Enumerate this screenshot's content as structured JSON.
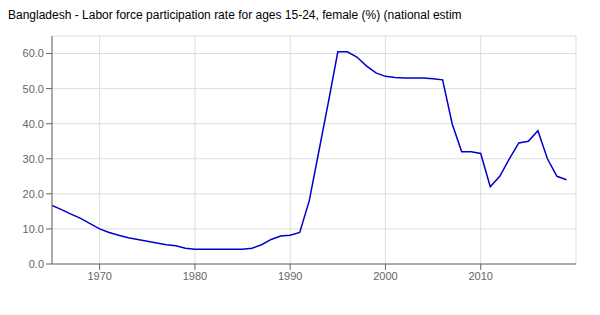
{
  "chart_data": {
    "type": "line",
    "title": "Bangladesh - Labor force participation rate for ages 15-24, female (%) (national estim",
    "x": [
      1965,
      1966,
      1967,
      1968,
      1969,
      1970,
      1971,
      1972,
      1973,
      1974,
      1975,
      1976,
      1977,
      1978,
      1979,
      1980,
      1981,
      1982,
      1983,
      1984,
      1985,
      1986,
      1987,
      1988,
      1989,
      1990,
      1991,
      1992,
      1993,
      1994,
      1995,
      1996,
      1997,
      1998,
      1999,
      2000,
      2001,
      2002,
      2003,
      2004,
      2005,
      2006,
      2007,
      2008,
      2009,
      2010,
      2011,
      2012,
      2013,
      2014,
      2015,
      2016,
      2017,
      2018,
      2019
    ],
    "values": [
      16.7,
      15.5,
      14.2,
      13.0,
      11.5,
      10.0,
      9.0,
      8.2,
      7.5,
      7.0,
      6.5,
      6.0,
      5.5,
      5.2,
      4.5,
      4.2,
      4.2,
      4.2,
      4.2,
      4.2,
      4.2,
      4.5,
      5.5,
      7.0,
      8.0,
      8.2,
      9.0,
      18.0,
      32.0,
      46.0,
      60.5,
      60.5,
      59.0,
      56.5,
      54.5,
      53.5,
      53.2,
      53.0,
      53.0,
      53.0,
      52.8,
      52.5,
      40.0,
      32.0,
      32.0,
      31.5,
      22.0,
      25.0,
      30.0,
      34.5,
      35.0,
      38.0,
      30.0,
      25.0,
      24.0
    ],
    "color": "#0000cc",
    "xlim": [
      1965,
      2020
    ],
    "xticks": [
      1970,
      1980,
      1990,
      2000,
      2010
    ],
    "ylim": [
      0,
      65
    ],
    "yticks": [
      {
        "value": 0,
        "label": "0.0"
      },
      {
        "value": 10,
        "label": "10.0"
      },
      {
        "value": 20,
        "label": "20.0"
      },
      {
        "value": 30,
        "label": "30.0"
      },
      {
        "value": 40,
        "label": "40.0"
      },
      {
        "value": 50,
        "label": "50.0"
      },
      {
        "value": 60,
        "label": "60.0"
      }
    ],
    "grid": true
  }
}
